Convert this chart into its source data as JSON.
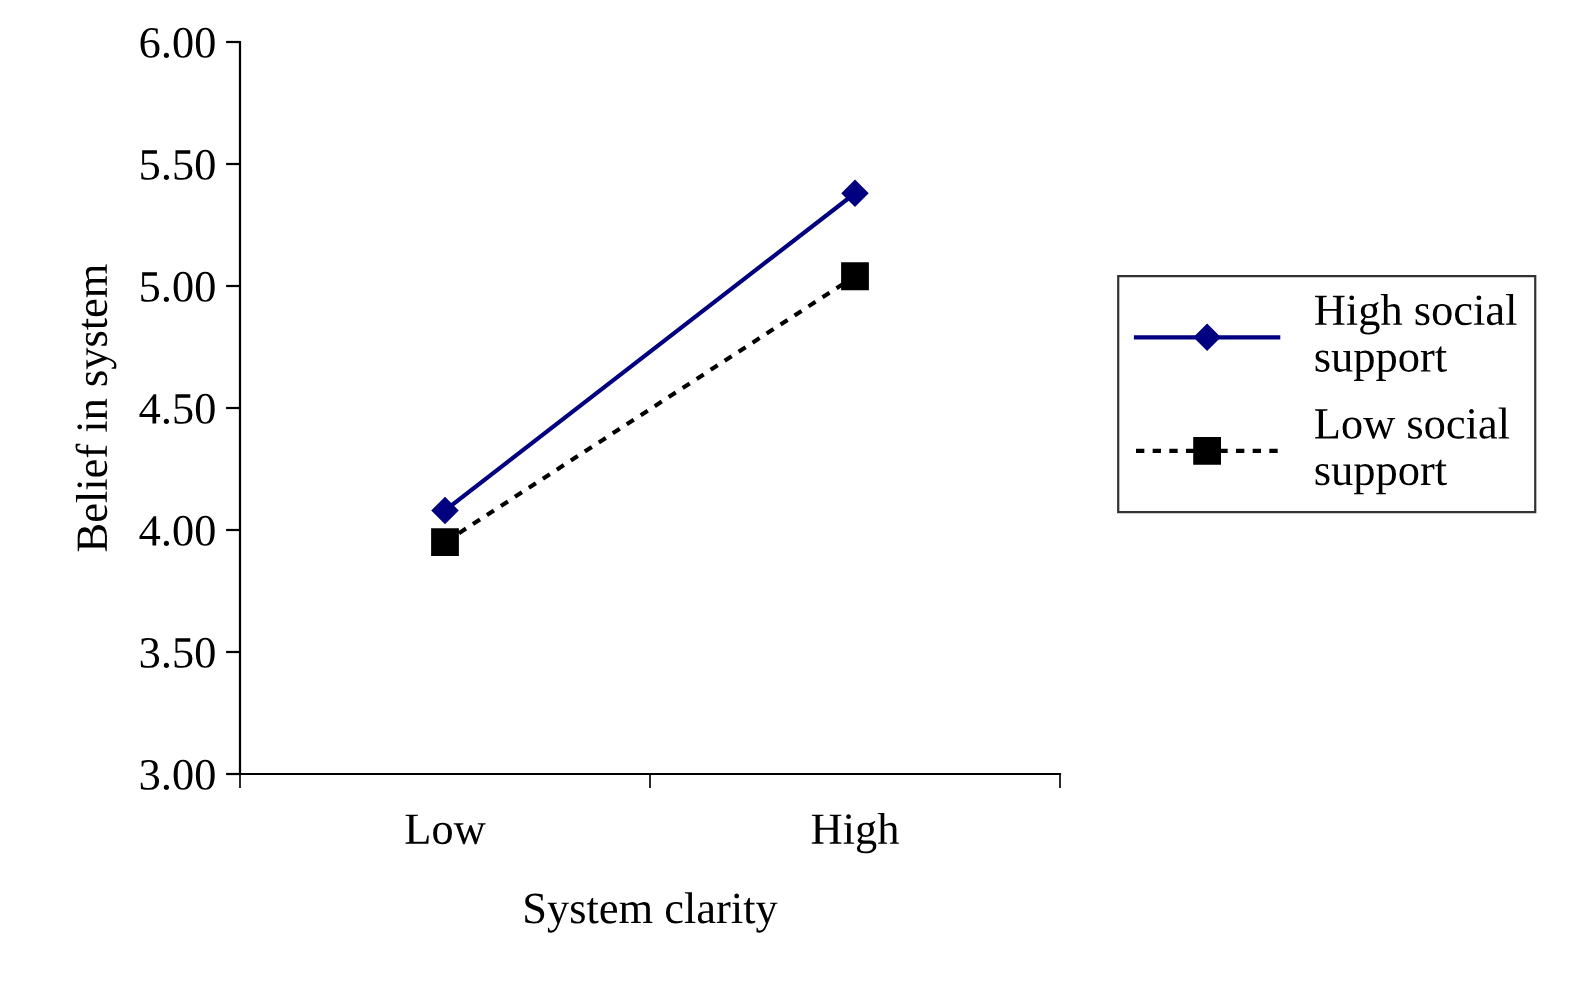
{
  "chart_data": {
    "type": "line",
    "xlabel": "System clarity",
    "ylabel": "Belief in system",
    "categories": [
      "Low",
      "High"
    ],
    "series": [
      {
        "name": "High social support",
        "color": "#000080",
        "values": [
          4.08,
          5.38
        ],
        "marker": "diamond",
        "line_style": "solid"
      },
      {
        "name": "Low social support",
        "color": "#000000",
        "values": [
          3.95,
          5.04
        ],
        "marker": "square",
        "line_style": "dotted"
      }
    ],
    "ylim": [
      3.0,
      6.0
    ],
    "yticks": [
      {
        "value": 3.0,
        "label": "3.00"
      },
      {
        "value": 3.5,
        "label": "3.50"
      },
      {
        "value": 4.0,
        "label": "4.00"
      },
      {
        "value": 4.5,
        "label": "4.50"
      },
      {
        "value": 5.0,
        "label": "5.00"
      },
      {
        "value": 5.5,
        "label": "5.50"
      },
      {
        "value": 6.0,
        "label": "6.00"
      }
    ],
    "grid": false,
    "legend": "right"
  }
}
